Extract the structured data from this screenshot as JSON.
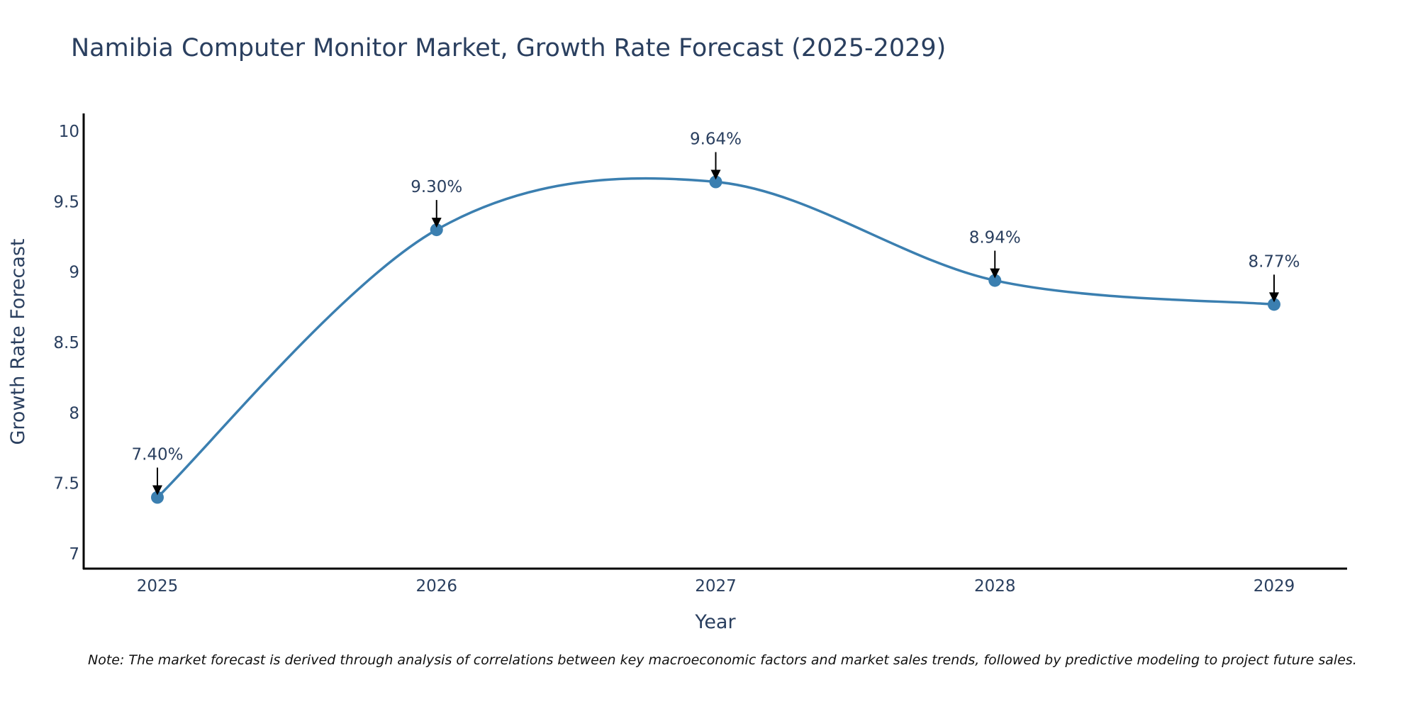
{
  "chart_data": {
    "type": "line",
    "title": "Namibia Computer Monitor Market, Growth Rate Forecast (2025-2029)",
    "xlabel": "Year",
    "ylabel": "Growth Rate Forecast",
    "categories": [
      "2025",
      "2026",
      "2027",
      "2028",
      "2029"
    ],
    "x": [
      2025,
      2026,
      2027,
      2028,
      2029
    ],
    "values": [
      7.4,
      9.3,
      9.64,
      8.94,
      8.77
    ],
    "data_labels": [
      "7.40%",
      "9.30%",
      "9.64%",
      "8.94%",
      "8.77%"
    ],
    "ylim": [
      6.9,
      10.12
    ],
    "yticks": [
      7,
      7.5,
      8,
      8.5,
      9,
      9.5,
      10
    ],
    "ytick_labels": [
      "7",
      "7.5",
      "8",
      "8.5",
      "9",
      "9.5",
      "10"
    ],
    "grid": false,
    "line_shape": "spline",
    "series_color": "#3b7fb0",
    "marker_color": "#3b7fb0",
    "annotation_arrow_color": "#000000",
    "text_color": "#2a3f5f",
    "axis_color": "#000000"
  },
  "note": "Note: The market forecast is derived through analysis of correlations between key macroeconomic factors and market sales trends, followed by predictive modeling to project future sales."
}
